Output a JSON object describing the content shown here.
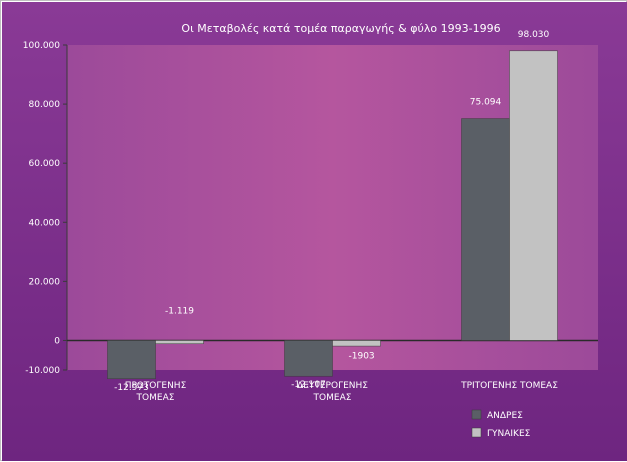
{
  "colors": {
    "plot_background": "#a24a97",
    "outer_background": "#7f2f8d",
    "bar_men": "#5a5f66",
    "bar_women": "#c2c2c2",
    "text": "#ffffff"
  },
  "chart_data": {
    "type": "bar",
    "title": "Οι Μεταβολές κατά τομέα παραγωγής & φύλο 1993-1996",
    "xlabel": "",
    "ylabel": "",
    "ylim": [
      -10000,
      100000
    ],
    "yticks": [
      -10000,
      0,
      20000,
      40000,
      60000,
      80000,
      100000
    ],
    "ytick_labels": [
      "-10.000",
      "0",
      "20.000",
      "40.000",
      "60.000",
      "80.000",
      "100.000"
    ],
    "grid": false,
    "legend_position": "bottom-right",
    "categories": [
      [
        "ΠΡΩΤΟΓΕΝΗΣ",
        "ΤΟΜΕΑΣ"
      ],
      [
        "ΔΕΥΤΕΡΟΓΕΝΗΣ",
        "ΤΟΜΕΑΣ"
      ],
      [
        "ΤΡΙΤΟΓΕΝΗΣ ΤΟΜΕΑΣ"
      ]
    ],
    "series": [
      {
        "name": "ΑΝΔΡΕΣ",
        "values": [
          -12973,
          -12107,
          75094
        ],
        "labels": [
          "-12.973",
          "-12.107",
          "75.094"
        ]
      },
      {
        "name": "ΓΥΝΑΙΚΕΣ",
        "values": [
          -1119,
          -1903,
          98030
        ],
        "labels": [
          "-1.119",
          "-1903",
          "98.030"
        ]
      }
    ]
  }
}
